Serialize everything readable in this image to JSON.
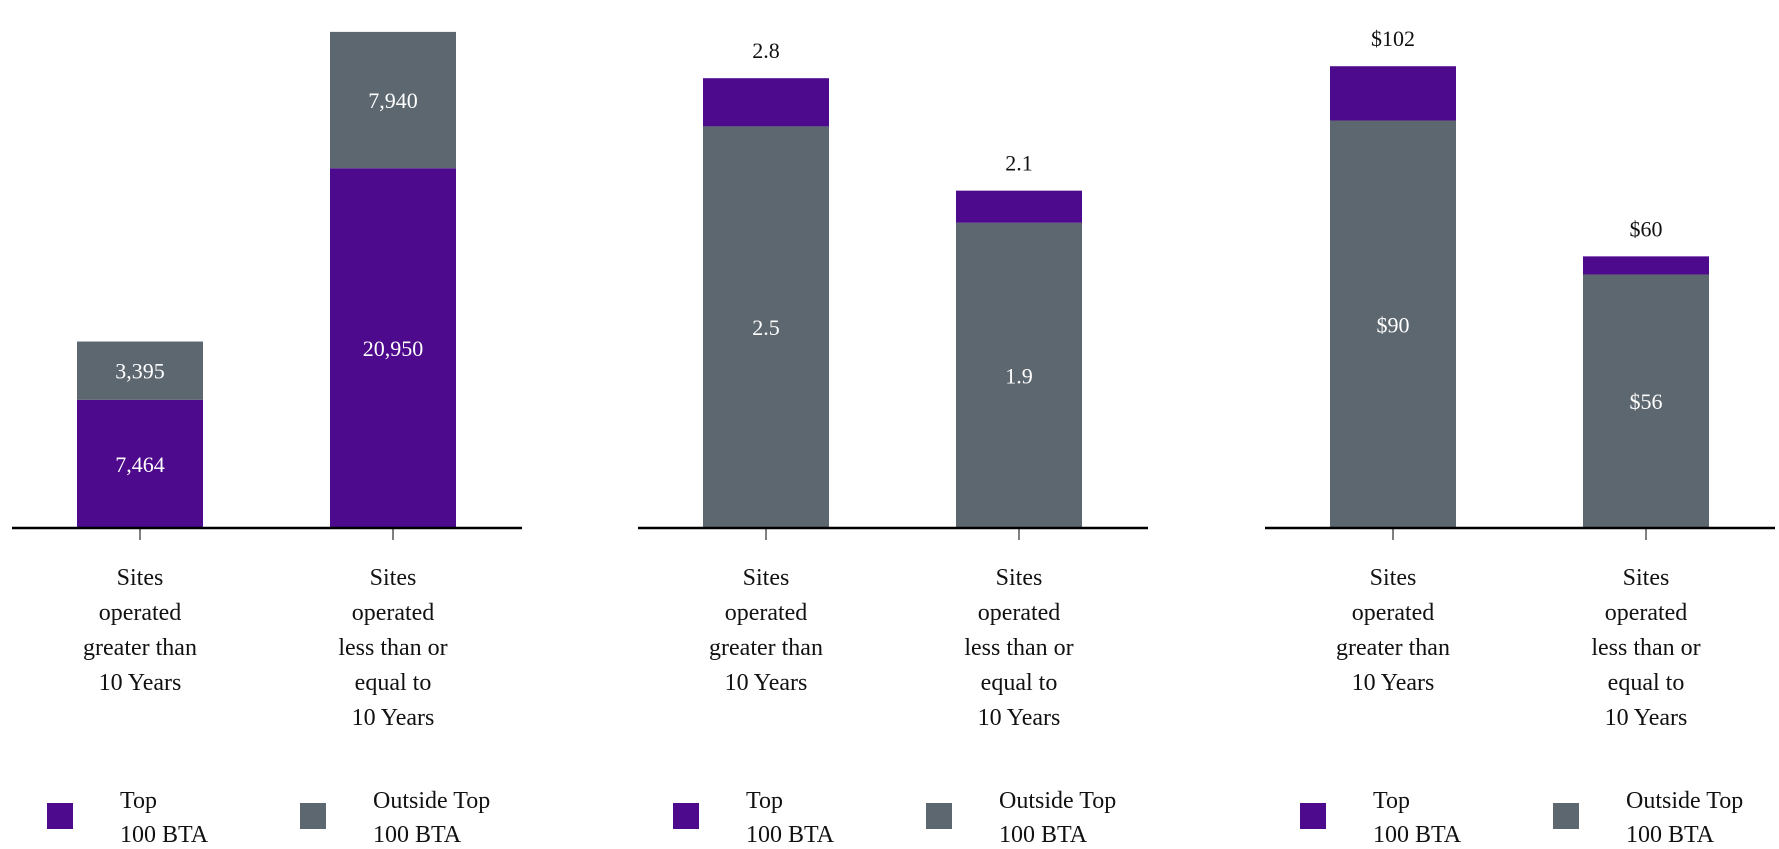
{
  "colors": {
    "top_100_bta": "#4E0A8C",
    "outside_top_100_bta": "#5D6770",
    "axis": "#000000"
  },
  "legend": {
    "items": [
      {
        "key": "top",
        "lines": [
          "Top",
          "100 BTA"
        ]
      },
      {
        "key": "outside",
        "lines": [
          "Outside Top",
          "100 BTA"
        ]
      }
    ]
  },
  "chart_data": [
    {
      "type": "bar",
      "stacked": true,
      "categories": [
        [
          "Sites",
          "operated",
          "greater than",
          "10 Years"
        ],
        [
          "Sites",
          "operated",
          "less than or",
          "equal to",
          "10 Years"
        ]
      ],
      "series": [
        {
          "name": "Top 100 BTA",
          "key": "top",
          "values": [
            7464,
            20950
          ],
          "labels": [
            "7,464",
            "20,950"
          ]
        },
        {
          "name": "Outside Top 100 BTA",
          "key": "outside",
          "values": [
            3395,
            7940
          ],
          "labels": [
            "3,395",
            "7,940"
          ]
        }
      ],
      "totals": [
        "",
        ""
      ],
      "ylim": [
        0,
        29000
      ]
    },
    {
      "type": "bar",
      "stacked": true,
      "categories": [
        [
          "Sites",
          "operated",
          "greater than",
          "10 Years"
        ],
        [
          "Sites",
          "operated",
          "less than or",
          "equal to",
          "10 Years"
        ]
      ],
      "series": [
        {
          "name": "Outside Top 100 BTA",
          "key": "outside",
          "values": [
            2.5,
            1.9
          ],
          "labels": [
            "2.5",
            "1.9"
          ]
        },
        {
          "name": "Top 100 BTA",
          "key": "top",
          "values": [
            0.3,
            0.2
          ],
          "labels": [
            "",
            ""
          ]
        }
      ],
      "totals": [
        "2.8",
        "2.1"
      ],
      "ylim": [
        0,
        3.1
      ]
    },
    {
      "type": "bar",
      "stacked": true,
      "categories": [
        [
          "Sites",
          "operated",
          "greater than",
          "10 Years"
        ],
        [
          "Sites",
          "operated",
          "less than or",
          "equal to",
          "10 Years"
        ]
      ],
      "series": [
        {
          "name": "Outside Top 100 BTA",
          "key": "outside",
          "values": [
            90,
            56
          ],
          "labels": [
            "$90",
            "$56"
          ]
        },
        {
          "name": "Top 100 BTA",
          "key": "top",
          "values": [
            12,
            4
          ],
          "labels": [
            "",
            ""
          ]
        }
      ],
      "totals": [
        "$102",
        "$60"
      ],
      "ylim": [
        0,
        110
      ]
    }
  ]
}
